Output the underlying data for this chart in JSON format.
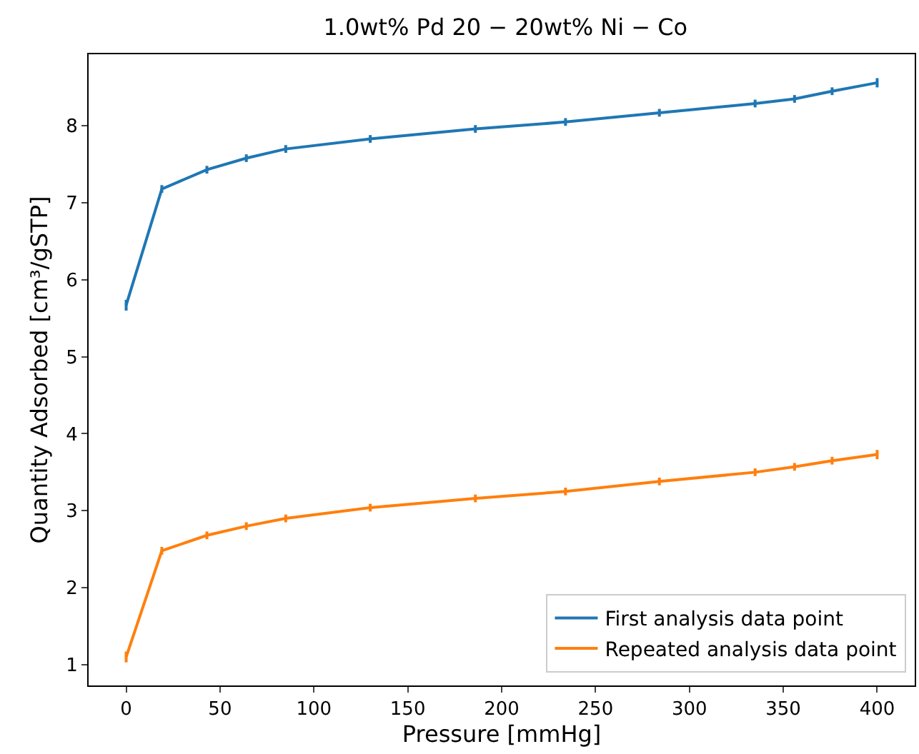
{
  "chart_data": {
    "type": "line",
    "title": "1.0wt% Pd 20 − 20wt% Ni − Co",
    "xlabel": "Pressure [mmHg]",
    "ylabel": "Quantity Adsorbed [cm³/gSTP]",
    "x": [
      0,
      19,
      43,
      64,
      85,
      130,
      186,
      234,
      284,
      335,
      356,
      376,
      400
    ],
    "series": [
      {
        "name": "First analysis data point",
        "color": "#1f77b4",
        "values": [
          5.67,
          7.18,
          7.43,
          7.58,
          7.7,
          7.83,
          7.96,
          8.05,
          8.17,
          8.29,
          8.35,
          8.45,
          8.56
        ],
        "errors": [
          0.07,
          0.05,
          0.05,
          0.05,
          0.05,
          0.05,
          0.05,
          0.05,
          0.05,
          0.05,
          0.05,
          0.05,
          0.06
        ]
      },
      {
        "name": "Repeated analysis data point",
        "color": "#ff7f0e",
        "values": [
          1.1,
          2.48,
          2.68,
          2.8,
          2.9,
          3.04,
          3.16,
          3.25,
          3.38,
          3.5,
          3.57,
          3.65,
          3.73
        ],
        "errors": [
          0.07,
          0.05,
          0.05,
          0.05,
          0.05,
          0.05,
          0.05,
          0.05,
          0.05,
          0.05,
          0.05,
          0.05,
          0.06
        ]
      }
    ],
    "xlim": [
      -20,
      420
    ],
    "ylim": [
      0.73,
      8.93
    ],
    "xticks": [
      0,
      50,
      100,
      150,
      200,
      250,
      300,
      350,
      400
    ],
    "yticks": [
      1,
      2,
      3,
      4,
      5,
      6,
      7,
      8
    ],
    "grid": false,
    "legend": "bottom right",
    "marker": "none",
    "line_style": "solid"
  }
}
